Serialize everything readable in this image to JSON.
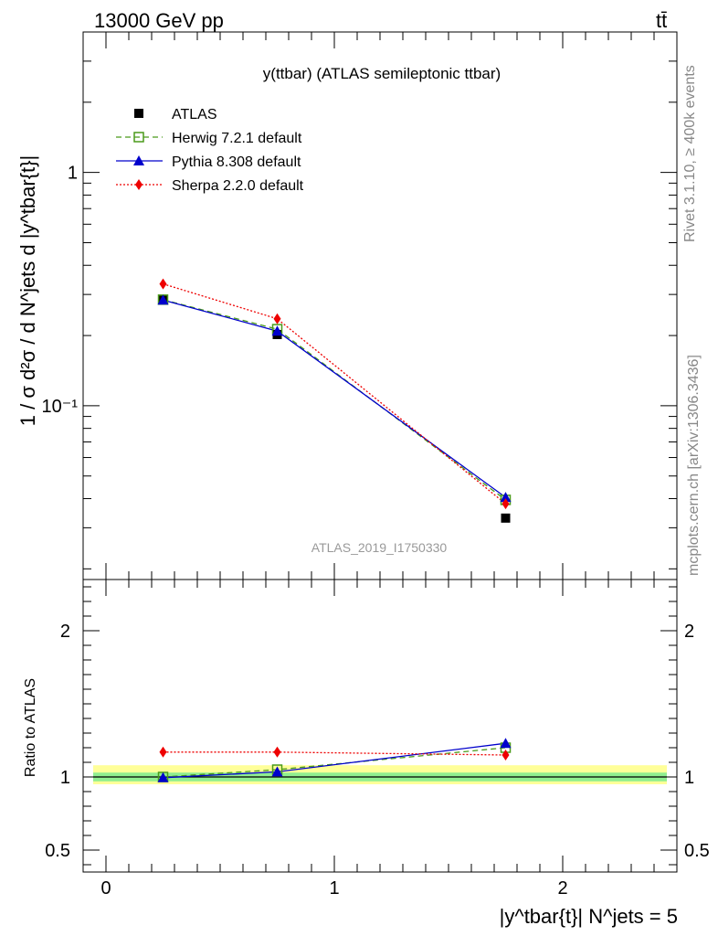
{
  "header": {
    "energy": "13000 GeV pp",
    "process": "tt̄"
  },
  "side_labels": {
    "rivet": "Rivet 3.1.10, ≥ 400k events",
    "source": "mcplots.cern.ch [arXiv:1306.3436]"
  },
  "chart_data": [
    {
      "type": "line",
      "panel": "main",
      "title": "y(ttbar) (ATLAS semileptonic ttbar)",
      "watermark": "ATLAS_2019_I1750330",
      "ylabel": "1 / σ d²σ / d N^jets d |y^tbar{t}|",
      "yscale": "log",
      "ylim": [
        0.018,
        4.0
      ],
      "xlim": [
        -0.1,
        2.5
      ],
      "x": [
        0.25,
        0.75,
        1.75
      ],
      "legend_position": "top-left",
      "series": [
        {
          "name": "ATLAS",
          "marker": "square-filled",
          "color": "#000000",
          "line": "none",
          "values": [
            0.285,
            0.202,
            0.033
          ]
        },
        {
          "name": "Herwig 7.2.1 default",
          "marker": "square-open",
          "color": "#4a9a1a",
          "line": "dashed",
          "values": [
            0.285,
            0.213,
            0.0395
          ]
        },
        {
          "name": "Pythia 8.308 default",
          "marker": "triangle",
          "color": "#0000cc",
          "line": "solid",
          "values": [
            0.284,
            0.209,
            0.0405
          ]
        },
        {
          "name": "Sherpa 2.2.0 default",
          "marker": "diamond",
          "color": "#ee0000",
          "line": "dotted",
          "values": [
            0.333,
            0.236,
            0.038
          ]
        }
      ],
      "y_ticks": [
        {
          "value": 1,
          "label": "1"
        },
        {
          "value": 0.1,
          "label": "10⁻¹"
        }
      ]
    },
    {
      "type": "line",
      "panel": "ratio",
      "ylabel": "Ratio to ATLAS",
      "xlabel": "|y^tbar{t}| N^jets = 5",
      "ylim": [
        0.35,
        2.35
      ],
      "xlim": [
        -0.1,
        2.5
      ],
      "x": [
        0.25,
        0.75,
        1.75
      ],
      "band_inner": [
        0.97,
        1.03
      ],
      "band_outer": [
        0.95,
        1.08
      ],
      "series": [
        {
          "name": "Herwig 7.2.1 default",
          "color": "#4a9a1a",
          "line": "dashed",
          "values": [
            1.0,
            1.05,
            1.2
          ]
        },
        {
          "name": "Pythia 8.308 default",
          "color": "#0000cc",
          "line": "solid",
          "values": [
            0.995,
            1.035,
            1.23
          ]
        },
        {
          "name": "Sherpa 2.2.0 default",
          "color": "#ee0000",
          "line": "dotted",
          "values": [
            1.17,
            1.17,
            1.15
          ]
        }
      ],
      "y_ticks": [
        {
          "value": 2,
          "label": "2"
        },
        {
          "value": 1,
          "label": "1"
        },
        {
          "value": 0.5,
          "label": "0.5"
        }
      ],
      "x_ticks": [
        {
          "value": 0,
          "label": "0"
        },
        {
          "value": 1,
          "label": "1"
        },
        {
          "value": 2,
          "label": "2"
        }
      ]
    }
  ],
  "colors": {
    "band_inner": "#90ee90",
    "band_outer": "#ffff99"
  }
}
